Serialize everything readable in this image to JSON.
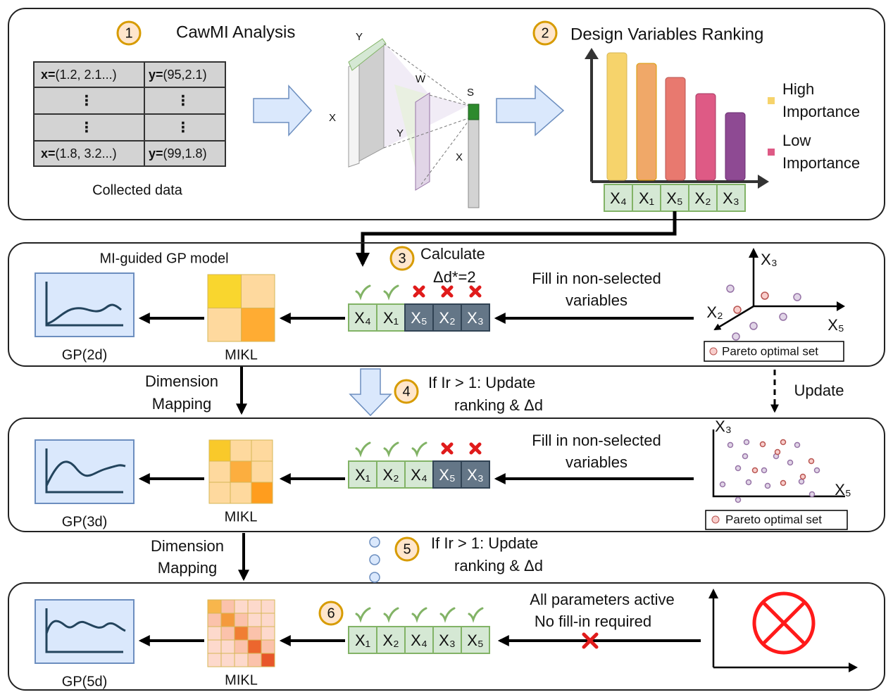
{
  "step1": {
    "number": "1",
    "title": "CawMI Analysis"
  },
  "table": {
    "rows": [
      [
        "x=",
        "(1.2, 2.1...)",
        "y=",
        "(95,2.1)"
      ],
      [
        "⋮",
        "⋮"
      ],
      [
        "⋮",
        "⋮"
      ],
      [
        "x=",
        "(1.8, 3.2...)",
        "y=",
        "(99,1.8)"
      ]
    ]
  },
  "caption": "Collected data",
  "layer_labels": [
    "Y",
    "X",
    "W",
    "Y",
    "S",
    "X"
  ],
  "step2": {
    "number": "2",
    "title": "Design Variables Ranking"
  },
  "legend": [
    [
      "High",
      "Importance"
    ],
    [
      "Low",
      "Importance"
    ]
  ],
  "ranking": [
    "X₄",
    "X₁",
    "X₅",
    "X₂",
    "X₃"
  ],
  "stages": [
    {
      "heading": "MI-guided GP model",
      "gp": "GP(2d)",
      "mikl": "MIKL",
      "step": "3",
      "note": [
        "Calculate",
        "Δd*=2"
      ],
      "cells": [
        "X₄",
        "X₁",
        "X₅",
        "X₂",
        "X₃"
      ],
      "fill": [
        "Fill in non-selected",
        "variables"
      ],
      "axes": [
        "X₃",
        "X₂",
        "X₅"
      ],
      "legend": "Pareto optimal set"
    },
    {
      "gp": "GP(3d)",
      "mikl": "MIKL",
      "cells": [
        "X₁",
        "X₂",
        "X₄",
        "X₅",
        "X₃"
      ],
      "fill": [
        "Fill in non-selected",
        "variables"
      ],
      "axes": [
        "X₃",
        "X₅"
      ],
      "legend": "Pareto optimal set"
    },
    {
      "gp": "GP(5d)",
      "mikl": "MIKL",
      "step": "6",
      "cells": [
        "X₁",
        "X₂",
        "X₄",
        "X₃",
        "X₅"
      ],
      "fill": [
        "All parameters active",
        "No fill-in required"
      ]
    }
  ],
  "transitions": [
    {
      "mapping": [
        "Dimension",
        "Mapping"
      ],
      "step": "4",
      "note": [
        "If Ir > 1: Update",
        "ranking & Δd"
      ],
      "update": "Update"
    },
    {
      "mapping": [
        "Dimension",
        "Mapping"
      ],
      "step": "5",
      "note": [
        "If Ir > 1: Update",
        "ranking & Δd"
      ]
    }
  ]
}
